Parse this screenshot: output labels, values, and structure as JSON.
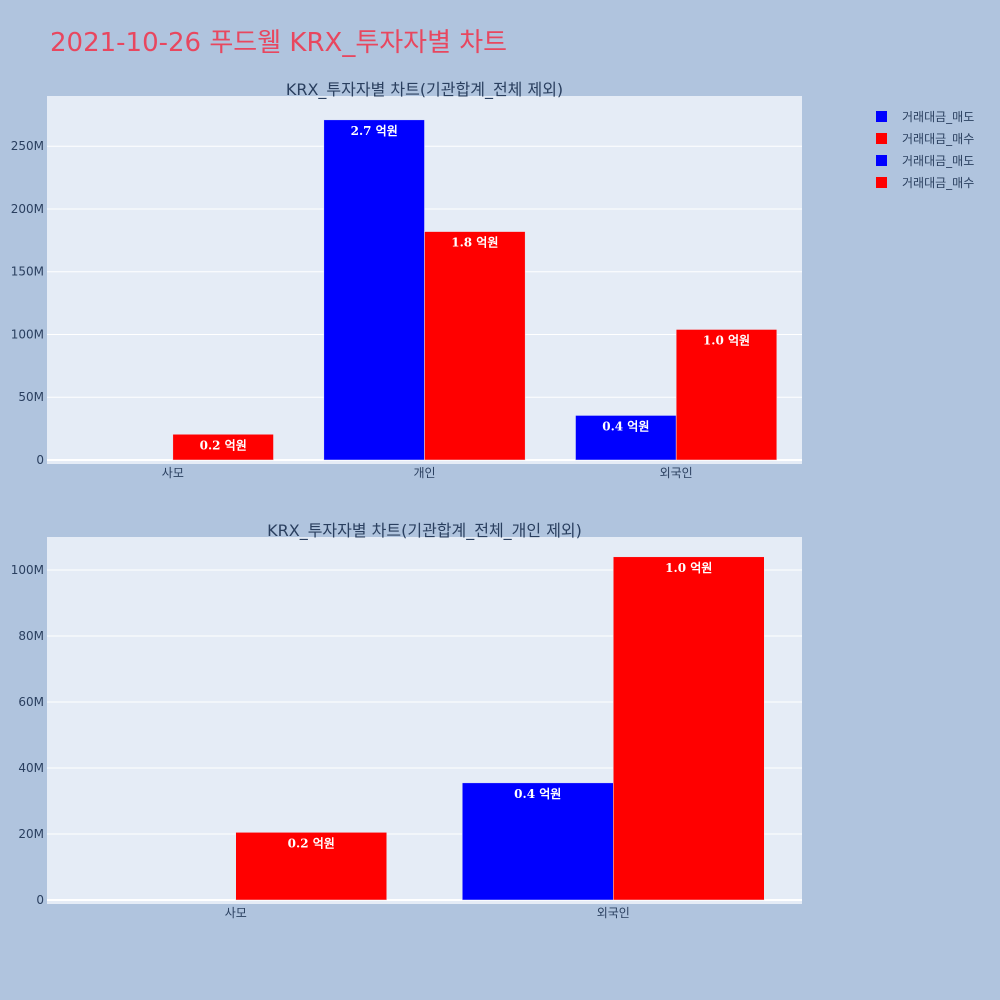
{
  "title": "2021-10-26 푸드웰 KRX_투자자별 차트",
  "colors": {
    "sell": "#0000ff",
    "buy": "#ff0000",
    "plot_bg": "#e5ecf6",
    "paper_bg": "#b0c4de",
    "title": "#e8475f"
  },
  "legend": [
    {
      "label": "거래대금_매도",
      "color": "#0000ff"
    },
    {
      "label": "거래대금_매수",
      "color": "#ff0000"
    },
    {
      "label": "거래대금_매도",
      "color": "#0000ff"
    },
    {
      "label": "거래대금_매수",
      "color": "#ff0000"
    }
  ],
  "chart_data": [
    {
      "type": "bar",
      "title": "KRX_투자자별 차트(기관합계_전체 제외)",
      "categories": [
        "사모",
        "개인",
        "외국인"
      ],
      "ylim": [
        0,
        290000000
      ],
      "yticks": [
        0,
        50000000,
        100000000,
        150000000,
        200000000,
        250000000
      ],
      "ytick_labels": [
        "0",
        "50M",
        "100M",
        "150M",
        "200M",
        "250M"
      ],
      "series": [
        {
          "name": "거래대금_매도",
          "color": "#0000ff",
          "values": [
            0,
            271000000,
            35500000
          ],
          "labels": [
            "",
            "2.7 억원",
            "0.4 억원"
          ]
        },
        {
          "name": "거래대금_매수",
          "color": "#ff0000",
          "values": [
            20500000,
            182000000,
            104000000
          ],
          "labels": [
            "0.2 억원",
            "1.8 억원",
            "1.0 억원"
          ]
        }
      ],
      "grid": true
    },
    {
      "type": "bar",
      "title": "KRX_투자자별 차트(기관합계_전체_개인 제외)",
      "categories": [
        "사모",
        "외국인"
      ],
      "ylim": [
        0,
        110000000
      ],
      "yticks": [
        0,
        20000000,
        40000000,
        60000000,
        80000000,
        100000000
      ],
      "ytick_labels": [
        "0",
        "20M",
        "40M",
        "60M",
        "80M",
        "100M"
      ],
      "series": [
        {
          "name": "거래대금_매도",
          "color": "#0000ff",
          "values": [
            0,
            35500000
          ],
          "labels": [
            "",
            "0.4 억원"
          ]
        },
        {
          "name": "거래대금_매수",
          "color": "#ff0000",
          "values": [
            20500000,
            104000000
          ],
          "labels": [
            "0.2 억원",
            "1.0 억원"
          ]
        }
      ],
      "grid": true
    }
  ]
}
